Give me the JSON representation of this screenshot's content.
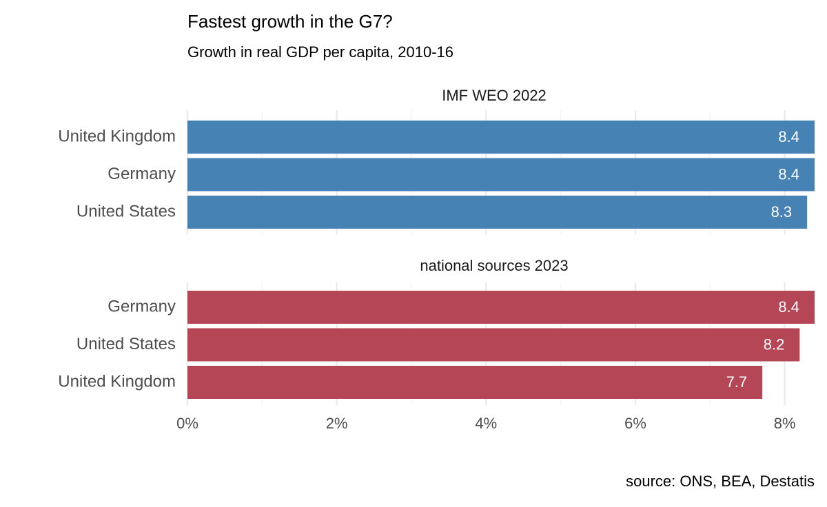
{
  "title": "Fastest growth in the G7?",
  "subtitle": "Growth in real GDP per capita, 2010-16",
  "caption": "source: ONS, BEA, Destatis",
  "xlim": [
    0,
    8.4
  ],
  "xticks": [
    {
      "value": 0,
      "label": "0%"
    },
    {
      "value": 2,
      "label": "2%"
    },
    {
      "value": 4,
      "label": "4%"
    },
    {
      "value": 6,
      "label": "6%"
    },
    {
      "value": 8,
      "label": "8%"
    }
  ],
  "xminor": [
    1,
    3,
    5,
    7
  ],
  "grid": true,
  "chart_data": [
    {
      "type": "barh",
      "title": "IMF WEO 2022",
      "color": "#4682b4",
      "categories": [
        "United Kingdom",
        "Germany",
        "United States"
      ],
      "values": [
        8.4,
        8.4,
        8.3
      ]
    },
    {
      "type": "barh",
      "title": "national sources 2023",
      "color": "#b44655",
      "categories": [
        "Germany",
        "United States",
        "United Kingdom"
      ],
      "values": [
        8.4,
        8.2,
        7.7
      ]
    }
  ]
}
